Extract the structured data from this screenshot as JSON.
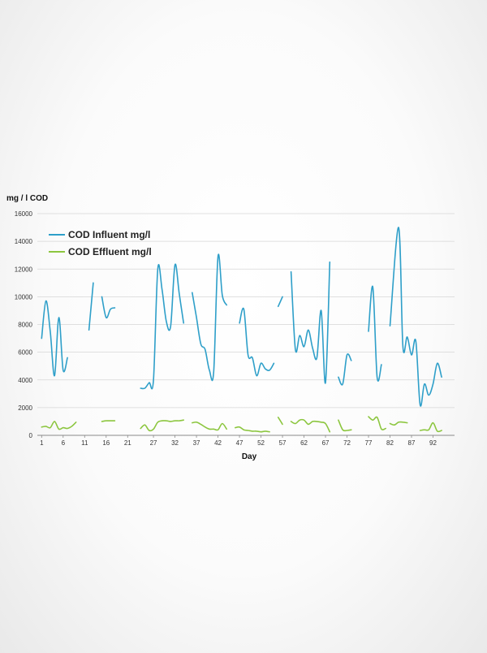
{
  "chart_data": {
    "type": "line",
    "title": "",
    "ylabel": "mg / l COD",
    "xlabel": "Day",
    "ylim": [
      0,
      16000
    ],
    "xlim": [
      0,
      97
    ],
    "y_ticks": [
      0,
      2000,
      4000,
      6000,
      8000,
      10000,
      12000,
      14000,
      16000
    ],
    "x_ticks": [
      1,
      6,
      11,
      16,
      21,
      27,
      32,
      37,
      42,
      47,
      52,
      57,
      62,
      67,
      72,
      77,
      82,
      87,
      92
    ],
    "grid": "horizontal",
    "legend_position": "top-left",
    "series": [
      {
        "name": "COD Influent mg/l",
        "color": "#2e9fc9",
        "segments": [
          [
            [
              1,
              7000
            ],
            [
              2,
              9700
            ],
            [
              3,
              7500
            ],
            [
              4,
              4300
            ],
            [
              5,
              8500
            ],
            [
              6,
              4700
            ],
            [
              7,
              5600
            ]
          ],
          [
            [
              12,
              7600
            ],
            [
              13,
              11000
            ]
          ],
          [
            [
              15,
              10000
            ],
            [
              16,
              8500
            ],
            [
              17,
              9100
            ],
            [
              18,
              9200
            ]
          ],
          [
            [
              24,
              3400
            ],
            [
              25,
              3400
            ],
            [
              26,
              3800
            ],
            [
              27,
              4000
            ],
            [
              28,
              12000
            ],
            [
              29,
              10500
            ],
            [
              30,
              8200
            ],
            [
              31,
              7900
            ],
            [
              32,
              12300
            ],
            [
              33,
              10200
            ],
            [
              34,
              8100
            ]
          ],
          [
            [
              36,
              10300
            ],
            [
              37,
              8500
            ],
            [
              38,
              6600
            ],
            [
              39,
              6200
            ],
            [
              40,
              4700
            ],
            [
              41,
              4600
            ],
            [
              42,
              12900
            ],
            [
              43,
              10100
            ],
            [
              44,
              9400
            ]
          ],
          [
            [
              47,
              8100
            ],
            [
              48,
              9100
            ],
            [
              49,
              5800
            ],
            [
              50,
              5600
            ],
            [
              51,
              4300
            ],
            [
              52,
              5200
            ],
            [
              53,
              4800
            ],
            [
              54,
              4700
            ],
            [
              55,
              5200
            ]
          ],
          [
            [
              56,
              9300
            ],
            [
              57,
              10000
            ]
          ],
          [
            [
              59,
              11800
            ],
            [
              60,
              6200
            ],
            [
              61,
              7200
            ],
            [
              62,
              6400
            ],
            [
              63,
              7600
            ],
            [
              64,
              6300
            ],
            [
              65,
              5600
            ],
            [
              66,
              9000
            ],
            [
              67,
              3800
            ],
            [
              68,
              12500
            ]
          ],
          [
            [
              70,
              4200
            ],
            [
              71,
              3700
            ],
            [
              72,
              5800
            ],
            [
              73,
              5400
            ]
          ],
          [
            [
              77,
              7500
            ],
            [
              78,
              10700
            ],
            [
              79,
              4200
            ],
            [
              80,
              5100
            ]
          ],
          [
            [
              82,
              7900
            ],
            [
              84,
              15000
            ],
            [
              85,
              6400
            ],
            [
              86,
              7100
            ],
            [
              87,
              5800
            ],
            [
              88,
              6800
            ],
            [
              89,
              2200
            ],
            [
              90,
              3700
            ],
            [
              91,
              2900
            ],
            [
              92,
              3700
            ],
            [
              93,
              5200
            ],
            [
              94,
              4200
            ]
          ]
        ]
      },
      {
        "name": "COD Effluent mg/l",
        "color": "#8cc63f",
        "segments": [
          [
            [
              1,
              600
            ],
            [
              2,
              650
            ],
            [
              3,
              550
            ],
            [
              4,
              1000
            ],
            [
              5,
              450
            ],
            [
              6,
              550
            ],
            [
              7,
              500
            ],
            [
              8,
              650
            ],
            [
              9,
              950
            ]
          ],
          [
            [
              15,
              1000
            ],
            [
              16,
              1050
            ],
            [
              17,
              1050
            ],
            [
              18,
              1050
            ]
          ],
          [
            [
              24,
              500
            ],
            [
              25,
              750
            ],
            [
              26,
              350
            ],
            [
              27,
              450
            ],
            [
              28,
              950
            ],
            [
              29,
              1050
            ],
            [
              30,
              1050
            ],
            [
              31,
              1000
            ],
            [
              32,
              1050
            ],
            [
              33,
              1050
            ],
            [
              34,
              1100
            ]
          ],
          [
            [
              36,
              900
            ],
            [
              37,
              950
            ],
            [
              38,
              800
            ],
            [
              39,
              600
            ],
            [
              40,
              450
            ],
            [
              41,
              450
            ],
            [
              42,
              400
            ],
            [
              43,
              850
            ],
            [
              44,
              450
            ]
          ],
          [
            [
              46,
              550
            ],
            [
              47,
              600
            ],
            [
              48,
              400
            ],
            [
              49,
              350
            ],
            [
              50,
              300
            ],
            [
              51,
              300
            ],
            [
              52,
              250
            ],
            [
              53,
              300
            ],
            [
              54,
              250
            ]
          ],
          [
            [
              56,
              1300
            ],
            [
              57,
              800
            ]
          ],
          [
            [
              59,
              1000
            ],
            [
              60,
              850
            ],
            [
              61,
              1100
            ],
            [
              62,
              1100
            ],
            [
              63,
              800
            ],
            [
              64,
              1000
            ],
            [
              65,
              1000
            ],
            [
              66,
              950
            ],
            [
              67,
              850
            ],
            [
              68,
              250
            ]
          ],
          [
            [
              70,
              1100
            ],
            [
              71,
              400
            ],
            [
              72,
              350
            ],
            [
              73,
              400
            ]
          ],
          [
            [
              77,
              1350
            ],
            [
              78,
              1100
            ],
            [
              79,
              1300
            ],
            [
              80,
              450
            ],
            [
              81,
              500
            ]
          ],
          [
            [
              82,
              850
            ],
            [
              83,
              750
            ],
            [
              84,
              950
            ],
            [
              85,
              950
            ],
            [
              86,
              900
            ]
          ],
          [
            [
              89,
              350
            ],
            [
              90,
              400
            ],
            [
              91,
              400
            ],
            [
              92,
              900
            ],
            [
              93,
              300
            ],
            [
              94,
              350
            ]
          ]
        ]
      }
    ]
  }
}
